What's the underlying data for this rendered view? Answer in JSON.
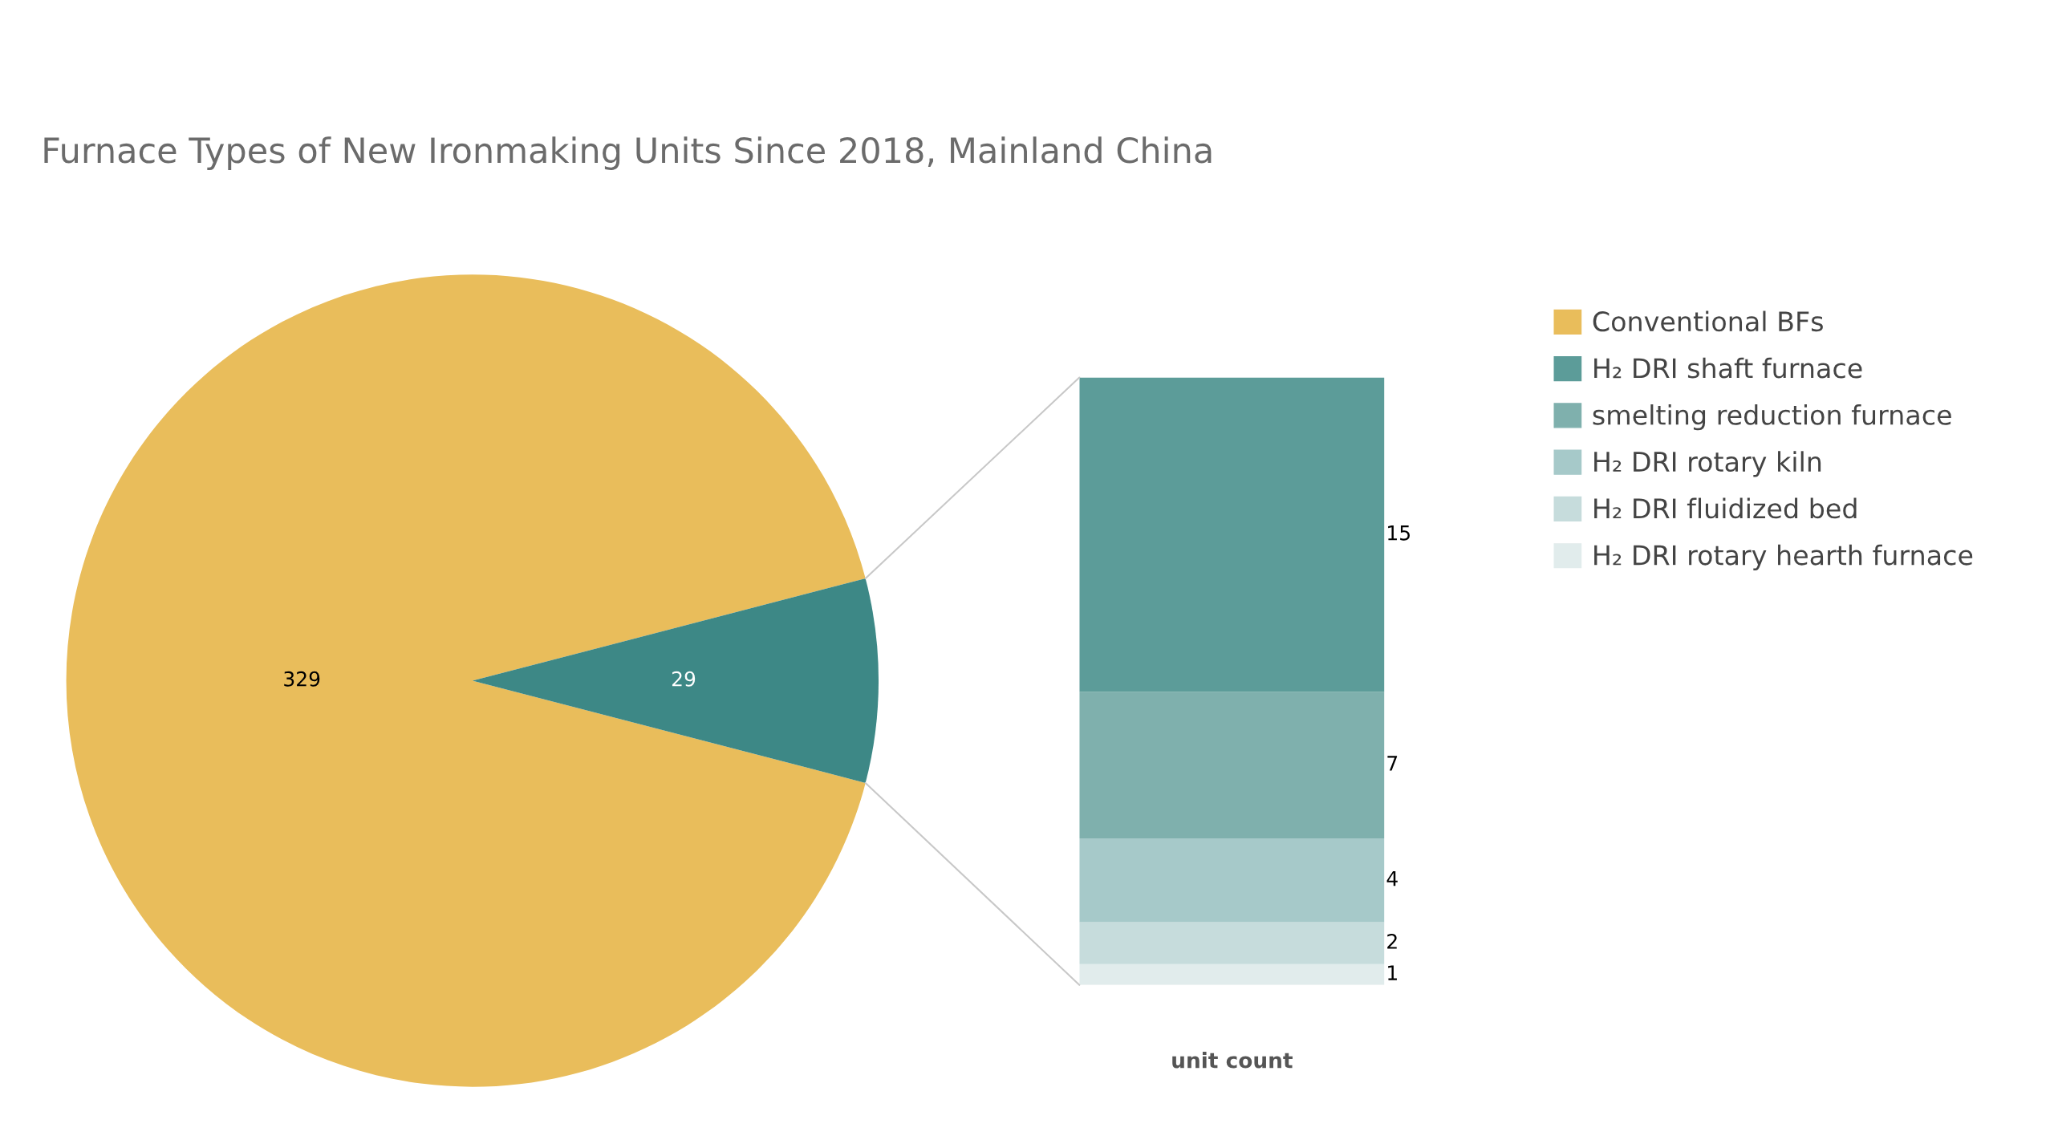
{
  "chart_data": [
    {
      "type": "pie",
      "title": "Furnace Types of New Ironmaking Units Since 2018, Mainland China",
      "categories": [
        "Conventional BFs",
        null
      ],
      "values": [
        329,
        29
      ],
      "colors": [
        "#e9bd5b",
        "#3d8886"
      ],
      "data_labels": true,
      "legend": "right"
    },
    {
      "type": "bar",
      "stacked": true,
      "categories": [
        null
      ],
      "xlabel": "unit count",
      "data_labels": true,
      "tick_labels": false,
      "legend": "right",
      "series": [
        {
          "name": "H₂ DRI rotary hearth furnace",
          "color": "#e1ecec",
          "values": [
            1
          ]
        },
        {
          "name": "H₂ DRI fluidized bed",
          "color": "#c6dcdc",
          "values": [
            2
          ]
        },
        {
          "name": "H₂ DRI rotary kiln",
          "color": "#a6c9c9",
          "values": [
            4
          ]
        },
        {
          "name": "smelting reduction furnace",
          "color": "#7fb0ad",
          "values": [
            7
          ]
        },
        {
          "name": "H₂ DRI shaft furnace",
          "color": "#5c9c99",
          "values": [
            15
          ]
        }
      ]
    }
  ]
}
